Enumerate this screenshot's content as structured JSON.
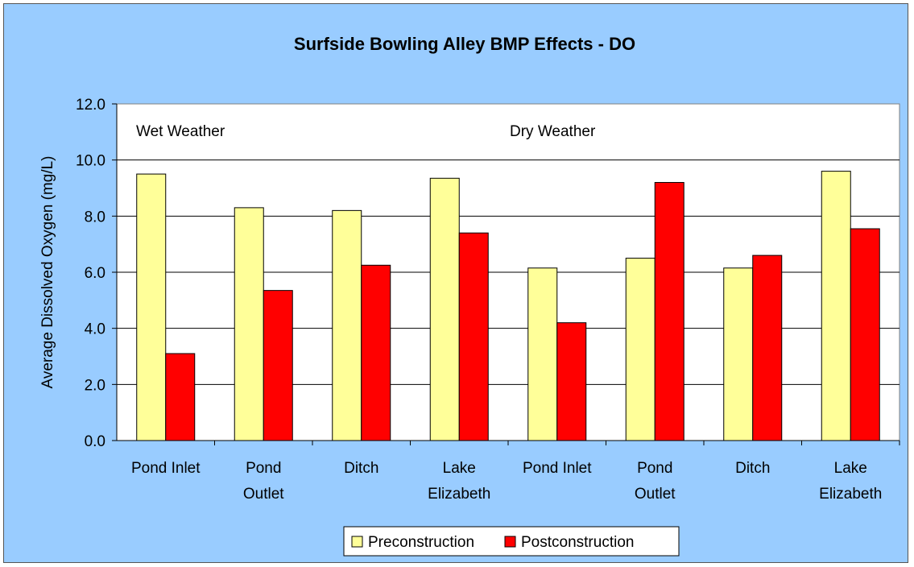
{
  "chart_data": {
    "type": "bar",
    "title": "Surfside Bowling Alley BMP Effects - DO",
    "xlabel": "",
    "ylabel": "Average Dissolved Oxygen (mg/L)",
    "ylim": [
      0,
      12
    ],
    "yticks": [
      "0.0",
      "2.0",
      "4.0",
      "6.0",
      "8.0",
      "10.0",
      "12.0"
    ],
    "grid": true,
    "legend_position": "bottom",
    "categories": [
      [
        "Pond Inlet"
      ],
      [
        "Pond",
        "Outlet"
      ],
      [
        "Ditch"
      ],
      [
        "Lake",
        "Elizabeth"
      ],
      [
        "Pond Inlet"
      ],
      [
        "Pond",
        "Outlet"
      ],
      [
        "Ditch"
      ],
      [
        "Lake",
        "Elizabeth"
      ]
    ],
    "series": [
      {
        "name": "Preconstruction",
        "color": "#ffff99",
        "values": [
          9.5,
          8.3,
          8.2,
          9.35,
          6.15,
          6.5,
          6.15,
          9.6
        ]
      },
      {
        "name": "Postconstruction",
        "color": "#ff0000",
        "values": [
          3.1,
          5.35,
          6.25,
          7.4,
          4.2,
          9.2,
          6.6,
          7.55
        ]
      }
    ],
    "annotations": [
      "Wet Weather",
      "Dry Weather"
    ],
    "plot_background": "#ffffff",
    "chart_background": "#99ccff"
  }
}
